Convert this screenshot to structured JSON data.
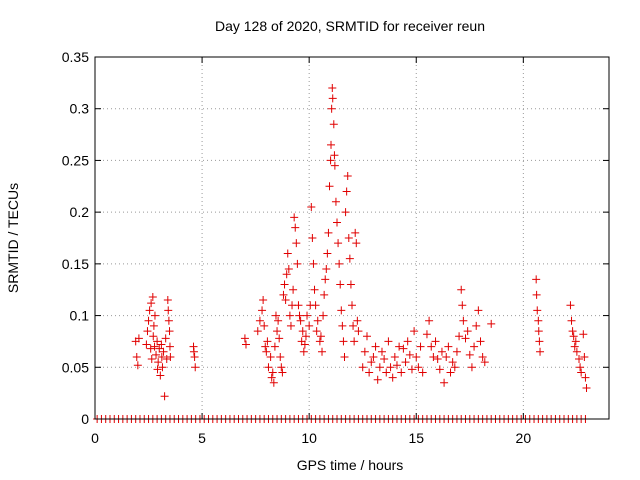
{
  "chart_data": {
    "type": "scatter",
    "title": "Day 128 of 2020, SRMTID for receiver reun",
    "xlabel": "GPS time / hours",
    "ylabel": "SRMTID / TECUs",
    "xlim": [
      0,
      24
    ],
    "ylim": [
      0,
      0.35
    ],
    "grid": true,
    "xticks": [
      0,
      5,
      10,
      15,
      20
    ],
    "yticks": [
      0,
      0.05,
      0.1,
      0.15,
      0.2,
      0.25,
      0.3,
      0.35
    ],
    "xtick_labels": [
      "0",
      "5",
      "10",
      "15",
      "20"
    ],
    "ytick_labels": [
      "0",
      "0.05",
      "0.1",
      "0.15",
      "0.2",
      "0.25",
      "0.3",
      "0.35"
    ],
    "marker": "+",
    "colors": {
      "series": "#e00000",
      "grid": "#999999",
      "axis": "#000000"
    },
    "zero_points_x": [
      0.1,
      0.3,
      0.5,
      0.7,
      0.9,
      1.1,
      1.3,
      1.5,
      1.7,
      1.9,
      2.1,
      2.3,
      2.5,
      2.7,
      2.9,
      3.1,
      3.3,
      3.5,
      3.7,
      3.9,
      4.1,
      4.3,
      4.5,
      4.7,
      4.9,
      5.1,
      5.3,
      5.5,
      5.7,
      5.9,
      6.1,
      6.3,
      6.5,
      6.7,
      6.9,
      7.1,
      7.3,
      7.5,
      7.7,
      7.9,
      8.1,
      8.3,
      8.5,
      8.7,
      8.9,
      9.1,
      9.3,
      9.5,
      9.7,
      9.9,
      10.1,
      10.3,
      10.5,
      10.7,
      10.9,
      11.1,
      11.3,
      11.5,
      11.7,
      11.9,
      12.1,
      12.3,
      12.5,
      12.7,
      12.9,
      13.1,
      13.3,
      13.5,
      13.7,
      13.9,
      14.1,
      14.3,
      14.5,
      14.7,
      14.9,
      15.1,
      15.3,
      15.5,
      15.7,
      15.9,
      16.1,
      16.3,
      16.5,
      16.7,
      16.9,
      17.1,
      17.3,
      17.5,
      17.7,
      17.9,
      18.1,
      18.3,
      18.5,
      18.7,
      18.9,
      19.1,
      19.3,
      19.5,
      19.7,
      19.9,
      20.1,
      20.3,
      20.5,
      20.7,
      20.9,
      21.1,
      21.3,
      21.5,
      21.7,
      21.9,
      22.1,
      22.3,
      22.5,
      22.7,
      22.9
    ],
    "points": [
      [
        1.9,
        0.075
      ],
      [
        1.95,
        0.06
      ],
      [
        2.0,
        0.052
      ],
      [
        2.05,
        0.078
      ],
      [
        2.4,
        0.072
      ],
      [
        2.45,
        0.085
      ],
      [
        2.5,
        0.095
      ],
      [
        2.55,
        0.105
      ],
      [
        2.6,
        0.068
      ],
      [
        2.62,
        0.112
      ],
      [
        2.65,
        0.058
      ],
      [
        2.7,
        0.118
      ],
      [
        2.72,
        0.08
      ],
      [
        2.75,
        0.09
      ],
      [
        2.78,
        0.07
      ],
      [
        2.8,
        0.1
      ],
      [
        2.85,
        0.062
      ],
      [
        2.9,
        0.075
      ],
      [
        2.92,
        0.048
      ],
      [
        2.95,
        0.055
      ],
      [
        3.0,
        0.068
      ],
      [
        3.05,
        0.042
      ],
      [
        3.1,
        0.072
      ],
      [
        3.12,
        0.06
      ],
      [
        3.15,
        0.05
      ],
      [
        3.2,
        0.065
      ],
      [
        3.25,
        0.022
      ],
      [
        3.3,
        0.078
      ],
      [
        3.35,
        0.058
      ],
      [
        3.4,
        0.115
      ],
      [
        3.42,
        0.105
      ],
      [
        3.45,
        0.095
      ],
      [
        3.48,
        0.085
      ],
      [
        3.5,
        0.07
      ],
      [
        3.52,
        0.06
      ],
      [
        4.6,
        0.07
      ],
      [
        4.62,
        0.065
      ],
      [
        4.65,
        0.06
      ],
      [
        4.68,
        0.05
      ],
      [
        7.0,
        0.078
      ],
      [
        7.05,
        0.072
      ],
      [
        7.6,
        0.085
      ],
      [
        7.7,
        0.095
      ],
      [
        7.8,
        0.105
      ],
      [
        7.85,
        0.115
      ],
      [
        7.9,
        0.09
      ],
      [
        7.95,
        0.07
      ],
      [
        8.0,
        0.065
      ],
      [
        8.05,
        0.075
      ],
      [
        8.1,
        0.05
      ],
      [
        8.2,
        0.06
      ],
      [
        8.25,
        0.04
      ],
      [
        8.3,
        0.045
      ],
      [
        8.35,
        0.035
      ],
      [
        8.4,
        0.07
      ],
      [
        8.45,
        0.1
      ],
      [
        8.5,
        0.085
      ],
      [
        8.55,
        0.095
      ],
      [
        8.6,
        0.078
      ],
      [
        8.65,
        0.06
      ],
      [
        8.7,
        0.05
      ],
      [
        8.75,
        0.045
      ],
      [
        8.8,
        0.12
      ],
      [
        8.85,
        0.13
      ],
      [
        8.9,
        0.115
      ],
      [
        8.95,
        0.14
      ],
      [
        9.0,
        0.16
      ],
      [
        9.05,
        0.145
      ],
      [
        9.1,
        0.1
      ],
      [
        9.15,
        0.09
      ],
      [
        9.2,
        0.11
      ],
      [
        9.25,
        0.125
      ],
      [
        9.3,
        0.195
      ],
      [
        9.35,
        0.185
      ],
      [
        9.4,
        0.17
      ],
      [
        9.45,
        0.15
      ],
      [
        9.5,
        0.11
      ],
      [
        9.55,
        0.1
      ],
      [
        9.6,
        0.095
      ],
      [
        9.65,
        0.075
      ],
      [
        9.7,
        0.085
      ],
      [
        9.75,
        0.065
      ],
      [
        9.8,
        0.072
      ],
      [
        9.85,
        0.08
      ],
      [
        9.9,
        0.1
      ],
      [
        10.0,
        0.09
      ],
      [
        10.05,
        0.11
      ],
      [
        10.1,
        0.205
      ],
      [
        10.15,
        0.175
      ],
      [
        10.2,
        0.15
      ],
      [
        10.25,
        0.125
      ],
      [
        10.3,
        0.11
      ],
      [
        10.35,
        0.085
      ],
      [
        10.4,
        0.095
      ],
      [
        10.5,
        0.075
      ],
      [
        10.55,
        0.08
      ],
      [
        10.6,
        0.065
      ],
      [
        10.65,
        0.1
      ],
      [
        10.7,
        0.12
      ],
      [
        10.75,
        0.135
      ],
      [
        10.8,
        0.145
      ],
      [
        10.85,
        0.16
      ],
      [
        10.9,
        0.18
      ],
      [
        10.95,
        0.225
      ],
      [
        11.0,
        0.25
      ],
      [
        11.02,
        0.265
      ],
      [
        11.05,
        0.3
      ],
      [
        11.08,
        0.32
      ],
      [
        11.1,
        0.31
      ],
      [
        11.15,
        0.285
      ],
      [
        11.18,
        0.255
      ],
      [
        11.2,
        0.245
      ],
      [
        11.25,
        0.21
      ],
      [
        11.3,
        0.19
      ],
      [
        11.35,
        0.17
      ],
      [
        11.4,
        0.15
      ],
      [
        11.45,
        0.13
      ],
      [
        11.5,
        0.105
      ],
      [
        11.55,
        0.09
      ],
      [
        11.6,
        0.075
      ],
      [
        11.65,
        0.06
      ],
      [
        11.7,
        0.2
      ],
      [
        11.75,
        0.22
      ],
      [
        11.8,
        0.235
      ],
      [
        11.85,
        0.175
      ],
      [
        11.9,
        0.155
      ],
      [
        11.95,
        0.13
      ],
      [
        12.0,
        0.11
      ],
      [
        12.05,
        0.09
      ],
      [
        12.1,
        0.075
      ],
      [
        12.15,
        0.18
      ],
      [
        12.2,
        0.17
      ],
      [
        12.25,
        0.095
      ],
      [
        12.3,
        0.085
      ],
      [
        12.5,
        0.05
      ],
      [
        12.6,
        0.065
      ],
      [
        12.7,
        0.08
      ],
      [
        12.8,
        0.045
      ],
      [
        12.9,
        0.055
      ],
      [
        13.0,
        0.06
      ],
      [
        13.1,
        0.07
      ],
      [
        13.2,
        0.038
      ],
      [
        13.3,
        0.05
      ],
      [
        13.4,
        0.065
      ],
      [
        13.5,
        0.058
      ],
      [
        13.6,
        0.045
      ],
      [
        13.7,
        0.075
      ],
      [
        13.8,
        0.05
      ],
      [
        13.9,
        0.04
      ],
      [
        14.0,
        0.06
      ],
      [
        14.1,
        0.052
      ],
      [
        14.2,
        0.07
      ],
      [
        14.3,
        0.045
      ],
      [
        14.4,
        0.068
      ],
      [
        14.5,
        0.055
      ],
      [
        14.6,
        0.075
      ],
      [
        14.7,
        0.062
      ],
      [
        14.8,
        0.048
      ],
      [
        14.9,
        0.085
      ],
      [
        15.0,
        0.06
      ],
      [
        15.1,
        0.05
      ],
      [
        15.2,
        0.07
      ],
      [
        15.3,
        0.045
      ],
      [
        15.5,
        0.082
      ],
      [
        15.6,
        0.095
      ],
      [
        15.7,
        0.07
      ],
      [
        15.8,
        0.06
      ],
      [
        15.9,
        0.075
      ],
      [
        16.0,
        0.058
      ],
      [
        16.1,
        0.048
      ],
      [
        16.2,
        0.065
      ],
      [
        16.3,
        0.035
      ],
      [
        16.4,
        0.06
      ],
      [
        16.5,
        0.07
      ],
      [
        16.6,
        0.045
      ],
      [
        16.7,
        0.055
      ],
      [
        16.8,
        0.05
      ],
      [
        16.9,
        0.065
      ],
      [
        17.0,
        0.08
      ],
      [
        17.1,
        0.125
      ],
      [
        17.15,
        0.11
      ],
      [
        17.2,
        0.095
      ],
      [
        17.3,
        0.078
      ],
      [
        17.4,
        0.085
      ],
      [
        17.5,
        0.062
      ],
      [
        17.6,
        0.05
      ],
      [
        17.7,
        0.07
      ],
      [
        17.8,
        0.09
      ],
      [
        17.9,
        0.105
      ],
      [
        18.0,
        0.075
      ],
      [
        18.1,
        0.06
      ],
      [
        18.2,
        0.055
      ],
      [
        18.5,
        0.092
      ],
      [
        20.6,
        0.135
      ],
      [
        20.62,
        0.12
      ],
      [
        20.65,
        0.105
      ],
      [
        20.7,
        0.095
      ],
      [
        20.72,
        0.085
      ],
      [
        20.75,
        0.075
      ],
      [
        20.78,
        0.065
      ],
      [
        22.2,
        0.11
      ],
      [
        22.25,
        0.095
      ],
      [
        22.3,
        0.085
      ],
      [
        22.35,
        0.08
      ],
      [
        22.4,
        0.07
      ],
      [
        22.45,
        0.075
      ],
      [
        22.5,
        0.065
      ],
      [
        22.6,
        0.058
      ],
      [
        22.65,
        0.05
      ],
      [
        22.7,
        0.045
      ],
      [
        22.8,
        0.082
      ],
      [
        22.85,
        0.06
      ],
      [
        22.9,
        0.04
      ],
      [
        22.95,
        0.03
      ]
    ]
  }
}
